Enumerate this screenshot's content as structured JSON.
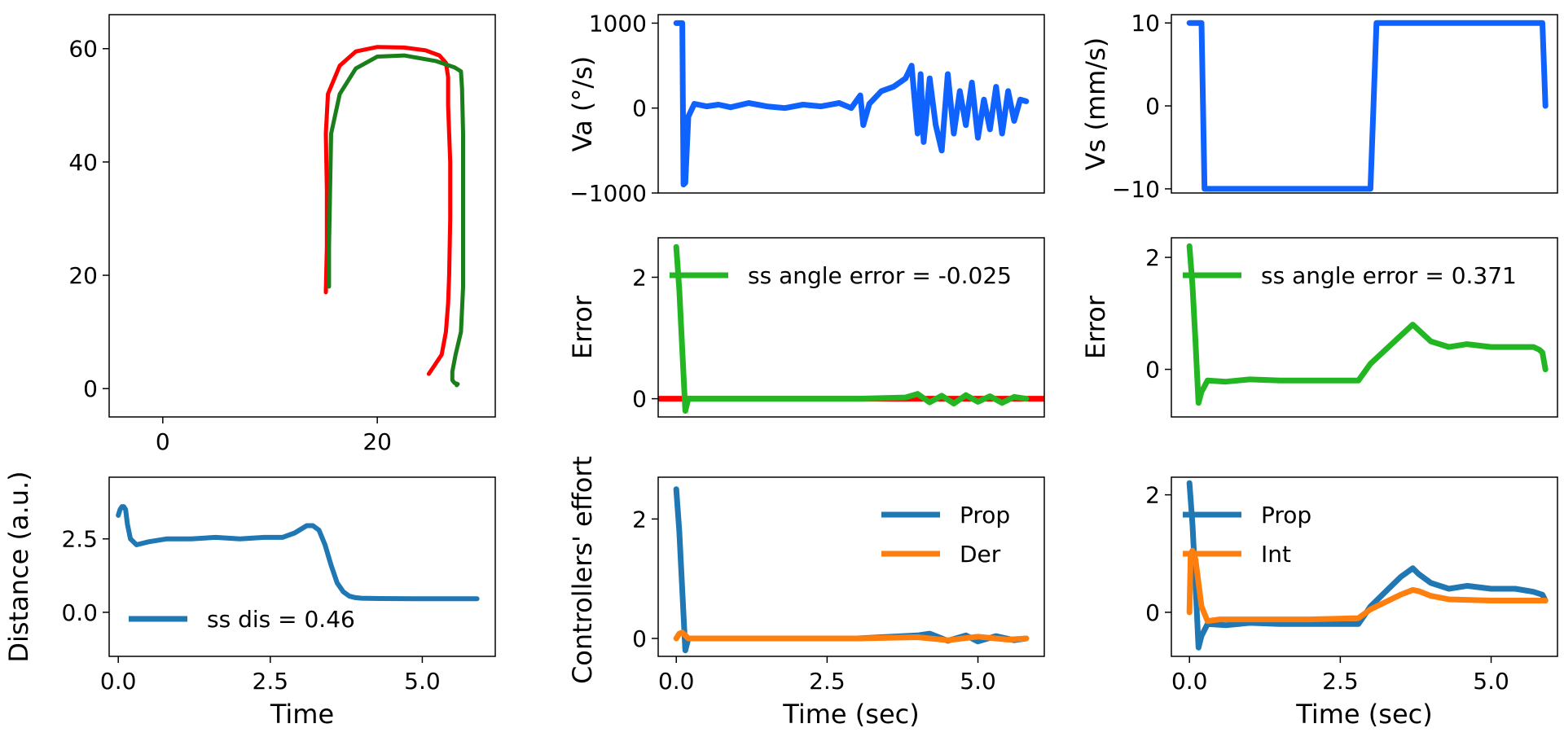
{
  "chart_data": [
    {
      "id": "trajectory",
      "type": "line",
      "xlim": [
        -5,
        31
      ],
      "ylim": [
        -5,
        66
      ],
      "xticks": [
        0,
        20
      ],
      "yticks": [
        0,
        20,
        40,
        60
      ],
      "xtick_labels": [
        "0",
        "20"
      ],
      "ytick_labels": [
        "0",
        "20",
        "40",
        "60"
      ],
      "xlabel": "",
      "ylabel": "",
      "legend": null,
      "series": [
        {
          "color": "#ff0000",
          "x": [
            15.2,
            15.3,
            15.3,
            15.2,
            15.4,
            16.5,
            18.0,
            20.0,
            22.5,
            24.5,
            25.8,
            26.4,
            26.6,
            26.6,
            26.7,
            26.8,
            26.8,
            26.7,
            26.6,
            26.4,
            26.0,
            25.3,
            24.8
          ],
          "y": [
            17,
            25,
            35,
            45,
            52,
            57,
            59.5,
            60.3,
            60.2,
            59.7,
            58.8,
            57.5,
            55,
            50,
            45,
            40,
            30,
            20,
            15,
            10,
            6,
            4,
            2.6
          ]
        },
        {
          "color": "#1a7f1a",
          "x": [
            15.5,
            15.5,
            15.6,
            15.7,
            16.5,
            18.0,
            20.0,
            22.5,
            25.5,
            27.2,
            27.8,
            27.9,
            28.0,
            28.0,
            28.0,
            28.0,
            27.8,
            27.3,
            27.0,
            27.0,
            27.2,
            27.5,
            27.4
          ],
          "y": [
            18,
            25,
            35,
            45,
            52,
            56.5,
            58.6,
            58.8,
            57.8,
            56.7,
            56.0,
            53,
            45,
            35,
            25,
            18,
            10,
            6,
            3,
            1.5,
            1.0,
            0.8,
            0.6
          ]
        }
      ]
    },
    {
      "id": "distance",
      "type": "line",
      "xlim": [
        -0.15,
        6.2
      ],
      "ylim": [
        -1.5,
        4.6
      ],
      "xticks": [
        0,
        2.5,
        5
      ],
      "yticks": [
        0,
        2.5
      ],
      "xtick_labels": [
        "0.0",
        "2.5",
        "5.0"
      ],
      "ytick_labels": [
        "0.0",
        "2.5"
      ],
      "xlabel": "Time",
      "ylabel": "Distance (a.u.)",
      "legend": {
        "position": "lower-left",
        "entries": [
          {
            "label": "ss dis = 0.46",
            "color": "#1f77b4"
          }
        ]
      },
      "series": [
        {
          "color": "#1f77b4",
          "x": [
            0,
            0.03,
            0.06,
            0.09,
            0.12,
            0.15,
            0.2,
            0.3,
            0.5,
            0.8,
            1.2,
            1.6,
            2.0,
            2.4,
            2.7,
            2.9,
            3.1,
            3.2,
            3.3,
            3.4,
            3.5,
            3.6,
            3.7,
            3.8,
            3.9,
            4.0,
            4.3,
            5.0,
            5.9
          ],
          "y": [
            3.3,
            3.5,
            3.6,
            3.6,
            3.5,
            3.0,
            2.5,
            2.3,
            2.4,
            2.5,
            2.5,
            2.55,
            2.5,
            2.55,
            2.55,
            2.7,
            2.95,
            2.95,
            2.8,
            2.3,
            1.6,
            1.0,
            0.7,
            0.55,
            0.5,
            0.48,
            0.47,
            0.46,
            0.46
          ]
        }
      ]
    },
    {
      "id": "va",
      "type": "line",
      "xlim": [
        -0.3,
        6.1
      ],
      "ylim": [
        -1000,
        1100
      ],
      "xticks": [],
      "yticks": [
        -1000,
        0,
        1000
      ],
      "xtick_labels": [],
      "ytick_labels": [
        "−1000",
        "0",
        "1000"
      ],
      "xlabel": "",
      "ylabel": "Va (°/s)",
      "legend": null,
      "series": [
        {
          "color": "#0f62fe",
          "x": [
            0,
            0.05,
            0.1,
            0.12,
            0.15,
            0.2,
            0.3,
            0.5,
            0.7,
            0.9,
            1.2,
            1.5,
            1.8,
            2.1,
            2.4,
            2.7,
            2.9,
            3.0,
            3.05,
            3.1,
            3.2,
            3.4,
            3.6,
            3.8,
            3.9,
            4.0,
            4.05,
            4.1,
            4.2,
            4.3,
            4.4,
            4.5,
            4.6,
            4.7,
            4.8,
            4.9,
            5.0,
            5.1,
            5.2,
            5.3,
            5.4,
            5.5,
            5.6,
            5.7,
            5.8
          ],
          "y": [
            1000,
            1000,
            1000,
            -900,
            -880,
            -100,
            50,
            20,
            40,
            10,
            60,
            20,
            0,
            40,
            20,
            60,
            0,
            100,
            150,
            -200,
            50,
            200,
            250,
            350,
            500,
            -300,
            400,
            -400,
            350,
            -200,
            -500,
            400,
            -300,
            200,
            -200,
            300,
            -350,
            100,
            -250,
            250,
            -300,
            200,
            -150,
            100,
            80
          ]
        }
      ]
    },
    {
      "id": "vs",
      "type": "line",
      "xlim": [
        -0.3,
        6.1
      ],
      "ylim": [
        -10.5,
        11
      ],
      "xticks": [],
      "yticks": [
        -10,
        0,
        10
      ],
      "xtick_labels": [],
      "ytick_labels": [
        "−10",
        "0",
        "10"
      ],
      "xlabel": "",
      "ylabel": "Vs (mm/s)",
      "legend": null,
      "series": [
        {
          "color": "#0f62fe",
          "x": [
            0,
            0.15,
            0.2,
            0.25,
            3.0,
            3.1,
            3.5,
            5.5,
            5.85,
            5.9
          ],
          "y": [
            10,
            10,
            10,
            -10,
            -10,
            10,
            10,
            10,
            10,
            0
          ]
        }
      ]
    },
    {
      "id": "error_a",
      "type": "line",
      "xlim": [
        -0.3,
        6.1
      ],
      "ylim": [
        -0.3,
        2.65
      ],
      "xticks": [],
      "yticks": [
        0,
        2
      ],
      "xtick_labels": [],
      "ytick_labels": [
        "0",
        "2"
      ],
      "xlabel": "",
      "ylabel": "Error",
      "legend": {
        "position": "top-center",
        "entries": [
          {
            "label": "ss angle error = -0.025",
            "color": "#22b722"
          }
        ]
      },
      "series": [
        {
          "color": "#ff0000",
          "x": [
            -0.3,
            6.1
          ],
          "y": [
            0,
            0
          ]
        },
        {
          "color": "#22b722",
          "x": [
            0,
            0.05,
            0.1,
            0.15,
            0.2,
            0.5,
            1.0,
            2.0,
            3.0,
            3.8,
            4.0,
            4.2,
            4.4,
            4.6,
            4.8,
            5.0,
            5.2,
            5.4,
            5.6,
            5.8
          ],
          "y": [
            2.5,
            1.8,
            0.8,
            -0.2,
            0.0,
            0.0,
            0.0,
            0.0,
            0.0,
            0.02,
            0.08,
            -0.06,
            0.05,
            -0.08,
            0.06,
            -0.05,
            0.04,
            -0.07,
            0.03,
            0.0
          ]
        }
      ]
    },
    {
      "id": "error_b",
      "type": "line",
      "xlim": [
        -0.3,
        6.1
      ],
      "ylim": [
        -0.85,
        2.35
      ],
      "xticks": [],
      "yticks": [
        0,
        2
      ],
      "xtick_labels": [],
      "ytick_labels": [
        "0",
        "2"
      ],
      "xlabel": "",
      "ylabel": "Error",
      "legend": {
        "position": "top-center",
        "entries": [
          {
            "label": "ss angle error = 0.371",
            "color": "#22b722"
          }
        ]
      },
      "series": [
        {
          "color": "#22b722",
          "x": [
            0,
            0.05,
            0.1,
            0.15,
            0.2,
            0.3,
            0.6,
            1.0,
            1.5,
            2.0,
            2.5,
            2.8,
            3.0,
            3.3,
            3.5,
            3.7,
            3.8,
            4.0,
            4.3,
            4.6,
            5.0,
            5.4,
            5.7,
            5.8,
            5.85,
            5.9
          ],
          "y": [
            2.2,
            1.5,
            0.5,
            -0.6,
            -0.4,
            -0.2,
            -0.22,
            -0.18,
            -0.2,
            -0.2,
            -0.2,
            -0.2,
            0.1,
            0.4,
            0.6,
            0.8,
            0.7,
            0.5,
            0.4,
            0.45,
            0.4,
            0.4,
            0.4,
            0.35,
            0.3,
            0.0
          ]
        }
      ]
    },
    {
      "id": "effort_a",
      "type": "line",
      "xlim": [
        -0.3,
        6.1
      ],
      "ylim": [
        -0.3,
        2.7
      ],
      "xticks": [
        0,
        2.5,
        5
      ],
      "yticks": [
        0,
        2
      ],
      "xtick_labels": [
        "0.0",
        "2.5",
        "5.0"
      ],
      "ytick_labels": [
        "0",
        "2"
      ],
      "xlabel": "Time (sec)",
      "ylabel": "Controllers' effort",
      "legend": {
        "position": "top-right",
        "entries": [
          {
            "label": "Prop",
            "color": "#1f77b4"
          },
          {
            "label": "Der",
            "color": "#ff7f0e"
          }
        ]
      },
      "series": [
        {
          "color": "#1f77b4",
          "name": "Prop",
          "x": [
            0,
            0.05,
            0.1,
            0.15,
            0.2,
            0.5,
            1.0,
            2.0,
            3.0,
            4.0,
            4.2,
            4.5,
            4.8,
            5.0,
            5.3,
            5.6,
            5.8
          ],
          "y": [
            2.5,
            1.8,
            0.8,
            -0.2,
            0.0,
            0.0,
            0.0,
            0.0,
            0.0,
            0.05,
            0.08,
            -0.04,
            0.05,
            -0.05,
            0.04,
            -0.03,
            0.0
          ]
        },
        {
          "color": "#ff7f0e",
          "name": "Der",
          "x": [
            0,
            0.05,
            0.1,
            0.15,
            0.2,
            0.5,
            1.0,
            2.0,
            3.0,
            4.0,
            4.5,
            5.0,
            5.5,
            5.8
          ],
          "y": [
            0.0,
            0.08,
            0.1,
            0.05,
            0.0,
            0.0,
            0.0,
            0.0,
            0.0,
            0.02,
            -0.03,
            0.03,
            -0.02,
            0.0
          ]
        }
      ]
    },
    {
      "id": "effort_b",
      "type": "line",
      "xlim": [
        -0.3,
        6.1
      ],
      "ylim": [
        -0.75,
        2.3
      ],
      "xticks": [
        0,
        2.5,
        5
      ],
      "yticks": [
        0,
        2
      ],
      "xtick_labels": [
        "0.0",
        "2.5",
        "5.0"
      ],
      "ytick_labels": [
        "0",
        "2"
      ],
      "xlabel": "Time (sec)",
      "ylabel": "",
      "legend": {
        "position": "top-left",
        "entries": [
          {
            "label": "Prop",
            "color": "#1f77b4"
          },
          {
            "label": "Int",
            "color": "#ff7f0e"
          }
        ]
      },
      "series": [
        {
          "color": "#1f77b4",
          "name": "Prop",
          "x": [
            0,
            0.05,
            0.1,
            0.15,
            0.2,
            0.3,
            0.6,
            1.0,
            1.5,
            2.0,
            2.5,
            2.8,
            3.0,
            3.3,
            3.5,
            3.7,
            3.8,
            4.0,
            4.3,
            4.6,
            5.0,
            5.4,
            5.7,
            5.85,
            5.9
          ],
          "y": [
            2.2,
            1.5,
            0.5,
            -0.6,
            -0.4,
            -0.2,
            -0.22,
            -0.18,
            -0.2,
            -0.2,
            -0.2,
            -0.2,
            0.1,
            0.4,
            0.6,
            0.75,
            0.65,
            0.5,
            0.4,
            0.45,
            0.4,
            0.4,
            0.35,
            0.3,
            0.2
          ]
        },
        {
          "color": "#ff7f0e",
          "name": "Int",
          "x": [
            0,
            0.02,
            0.05,
            0.1,
            0.15,
            0.2,
            0.3,
            0.5,
            1.0,
            2.0,
            2.8,
            3.0,
            3.3,
            3.5,
            3.7,
            3.8,
            4.0,
            4.3,
            5.0,
            5.9
          ],
          "y": [
            0.0,
            1.0,
            1.05,
            0.9,
            0.5,
            0.1,
            -0.15,
            -0.12,
            -0.12,
            -0.12,
            -0.1,
            0.05,
            0.2,
            0.3,
            0.38,
            0.36,
            0.28,
            0.22,
            0.2,
            0.2
          ]
        }
      ]
    }
  ]
}
